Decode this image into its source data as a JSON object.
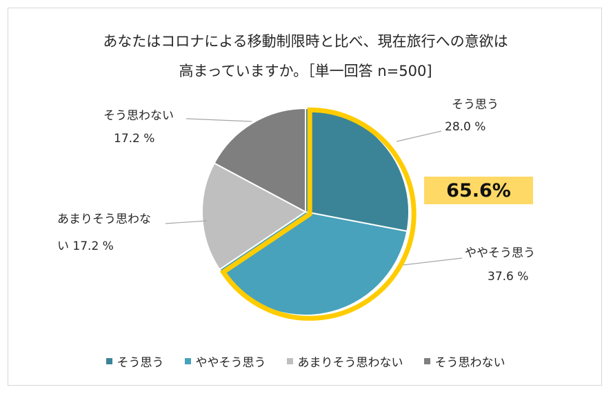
{
  "title_line1": "あなたはコロナによる移動制限時と比べ、現在旅行への意欲は",
  "title_line2": "高まっていますか。［単一回答 n=500]",
  "highlight_label": "65.6%",
  "chart_data": {
    "type": "pie",
    "title": "あなたはコロナによる移動制限時と比べ、現在旅行への意欲は高まっていますか。［単一回答 n=500]",
    "categories": [
      "そう思う",
      "ややそう思う",
      "あまりそう思わない",
      "そう思わない"
    ],
    "values": [
      28.0,
      37.6,
      17.2,
      17.2
    ],
    "value_labels": [
      "28.0 %",
      "37.6 %",
      "17.2 %",
      "17.2 %"
    ],
    "label_lines": [
      [
        "そう思う",
        "28.0 %"
      ],
      [
        "ややそう思う",
        "37.6 %"
      ],
      [
        "あまりそう思わな",
        "い 17.2 %"
      ],
      [
        "そう思わない",
        "17.2 %"
      ]
    ],
    "colors": [
      "#3b8497",
      "#48a2bb",
      "#bfbfbf",
      "#7f7f7f"
    ],
    "highlight_color": "#ffcc00",
    "highlight_value": "65.6%",
    "legend_position": "bottom"
  }
}
